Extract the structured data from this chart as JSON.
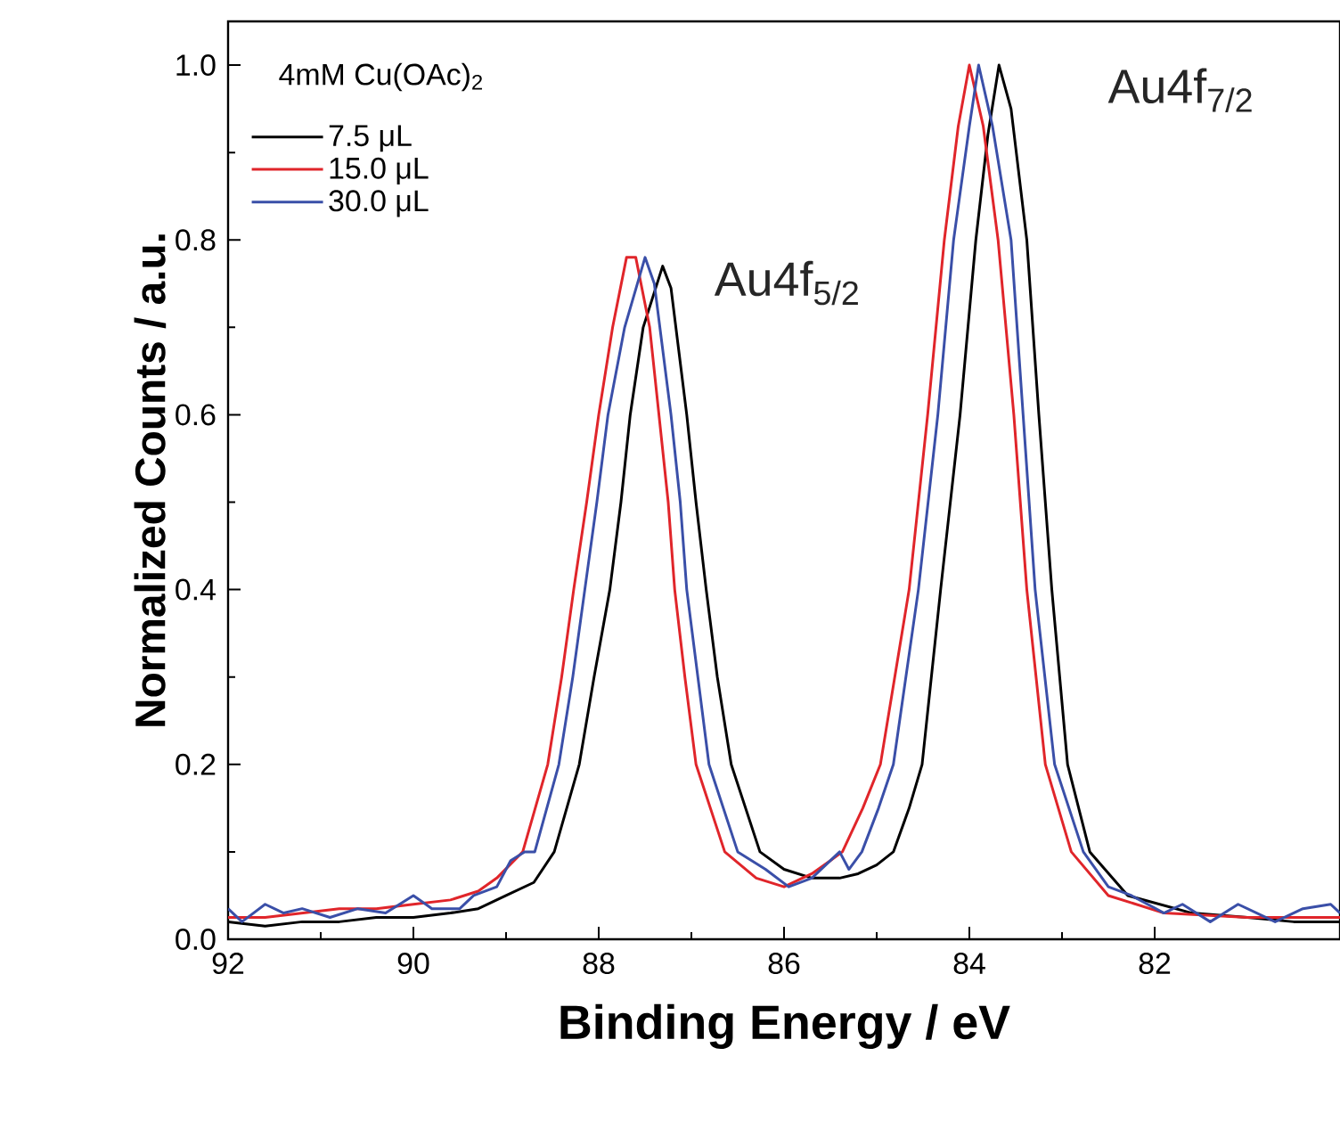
{
  "chart_data": {
    "type": "line",
    "xlabel": "Binding Energy / eV",
    "ylabel": "Normalized Counts / a.u.",
    "legend_title": "4mM Cu(OAc)$_{2}$",
    "legend": "top left",
    "grid": false,
    "marker": "none",
    "line_style": "solid",
    "xlim": [
      92,
      80
    ],
    "ylim": [
      0,
      1.05
    ],
    "xticks": [
      92,
      90,
      88,
      86,
      84,
      82
    ],
    "yticks": [
      {
        "value": 0,
        "label": "0.0"
      },
      {
        "value": 0.2,
        "label": "0.2"
      },
      {
        "value": 0.4,
        "label": "0.4"
      },
      {
        "value": 0.6,
        "label": "0.6"
      },
      {
        "value": 0.8,
        "label": "0.8"
      },
      {
        "value": 1.0,
        "label": "1.0"
      }
    ],
    "annotations": [
      "Au4f$_{5/2}$",
      "Au4f$_{7/2}$"
    ],
    "series": [
      {
        "name": "7.5 μL",
        "color": "#000000",
        "x": [
          92,
          91.6,
          91.2,
          90.8,
          90.4,
          90.0,
          89.6,
          89.3,
          89.0,
          88.7,
          88.48,
          88.21,
          88.05,
          87.88,
          87.76,
          87.66,
          87.52,
          87.31,
          87.22,
          87.05,
          86.95,
          86.84,
          86.72,
          86.57,
          86.26,
          86.0,
          85.7,
          85.4,
          85.2,
          85.0,
          84.82,
          84.65,
          84.51,
          84.31,
          84.1,
          83.93,
          83.8,
          83.68,
          83.55,
          83.38,
          83.25,
          83.11,
          82.94,
          82.7,
          82.29,
          81.6,
          81.0,
          80.5,
          80.0
        ],
        "values": [
          0.02,
          0.015,
          0.02,
          0.02,
          0.025,
          0.025,
          0.03,
          0.035,
          0.05,
          0.065,
          0.1,
          0.2,
          0.3,
          0.4,
          0.5,
          0.6,
          0.7,
          0.77,
          0.745,
          0.6,
          0.5,
          0.4,
          0.3,
          0.2,
          0.1,
          0.08,
          0.07,
          0.07,
          0.075,
          0.085,
          0.1,
          0.15,
          0.2,
          0.4,
          0.6,
          0.8,
          0.92,
          1.0,
          0.95,
          0.8,
          0.6,
          0.4,
          0.2,
          0.1,
          0.05,
          0.03,
          0.025,
          0.02,
          0.02
        ]
      },
      {
        "name": "15.0 μL",
        "color": "#e0252a",
        "x": [
          92,
          91.6,
          91.2,
          90.8,
          90.4,
          90.0,
          89.6,
          89.3,
          89.1,
          88.82,
          88.55,
          88.4,
          88.27,
          88.13,
          88.0,
          87.85,
          87.7,
          87.6,
          87.45,
          87.35,
          87.25,
          87.18,
          87.07,
          86.95,
          86.64,
          86.3,
          86.0,
          85.7,
          85.5,
          85.37,
          85.15,
          84.96,
          84.65,
          84.45,
          84.27,
          84.12,
          84.0,
          83.85,
          83.69,
          83.52,
          83.38,
          83.18,
          82.9,
          82.5,
          81.9,
          81.0,
          80.0
        ],
        "values": [
          0.025,
          0.025,
          0.03,
          0.035,
          0.035,
          0.04,
          0.045,
          0.055,
          0.07,
          0.1,
          0.2,
          0.3,
          0.4,
          0.5,
          0.6,
          0.7,
          0.78,
          0.78,
          0.7,
          0.6,
          0.5,
          0.4,
          0.3,
          0.2,
          0.1,
          0.07,
          0.06,
          0.075,
          0.09,
          0.1,
          0.15,
          0.2,
          0.4,
          0.6,
          0.8,
          0.93,
          1.0,
          0.93,
          0.8,
          0.6,
          0.4,
          0.2,
          0.1,
          0.05,
          0.03,
          0.025,
          0.025
        ]
      },
      {
        "name": "30.0 μL",
        "color": "#3a4fa8",
        "x": [
          92,
          91.85,
          91.6,
          91.4,
          91.2,
          90.9,
          90.6,
          90.3,
          90.0,
          89.8,
          89.5,
          89.35,
          89.1,
          88.95,
          88.8,
          88.69,
          88.43,
          88.28,
          88.15,
          88.02,
          87.9,
          87.72,
          87.5,
          87.4,
          87.22,
          87.12,
          87.05,
          86.93,
          86.81,
          86.5,
          86.2,
          85.95,
          85.7,
          85.4,
          85.3,
          85.16,
          84.98,
          84.82,
          84.55,
          84.34,
          84.17,
          84.0,
          83.9,
          83.75,
          83.55,
          83.42,
          83.29,
          83.08,
          82.77,
          82.5,
          82.25,
          81.9,
          81.7,
          81.4,
          81.1,
          80.7,
          80.4,
          80.1,
          80.0
        ],
        "values": [
          0.035,
          0.02,
          0.04,
          0.03,
          0.035,
          0.025,
          0.035,
          0.03,
          0.05,
          0.035,
          0.035,
          0.05,
          0.06,
          0.09,
          0.1,
          0.1,
          0.2,
          0.3,
          0.4,
          0.5,
          0.6,
          0.7,
          0.78,
          0.75,
          0.6,
          0.5,
          0.4,
          0.3,
          0.2,
          0.1,
          0.08,
          0.06,
          0.07,
          0.1,
          0.08,
          0.1,
          0.15,
          0.2,
          0.4,
          0.6,
          0.8,
          0.93,
          1.0,
          0.93,
          0.8,
          0.6,
          0.4,
          0.2,
          0.1,
          0.06,
          0.05,
          0.03,
          0.04,
          0.02,
          0.04,
          0.02,
          0.035,
          0.04,
          0.03
        ]
      }
    ]
  }
}
